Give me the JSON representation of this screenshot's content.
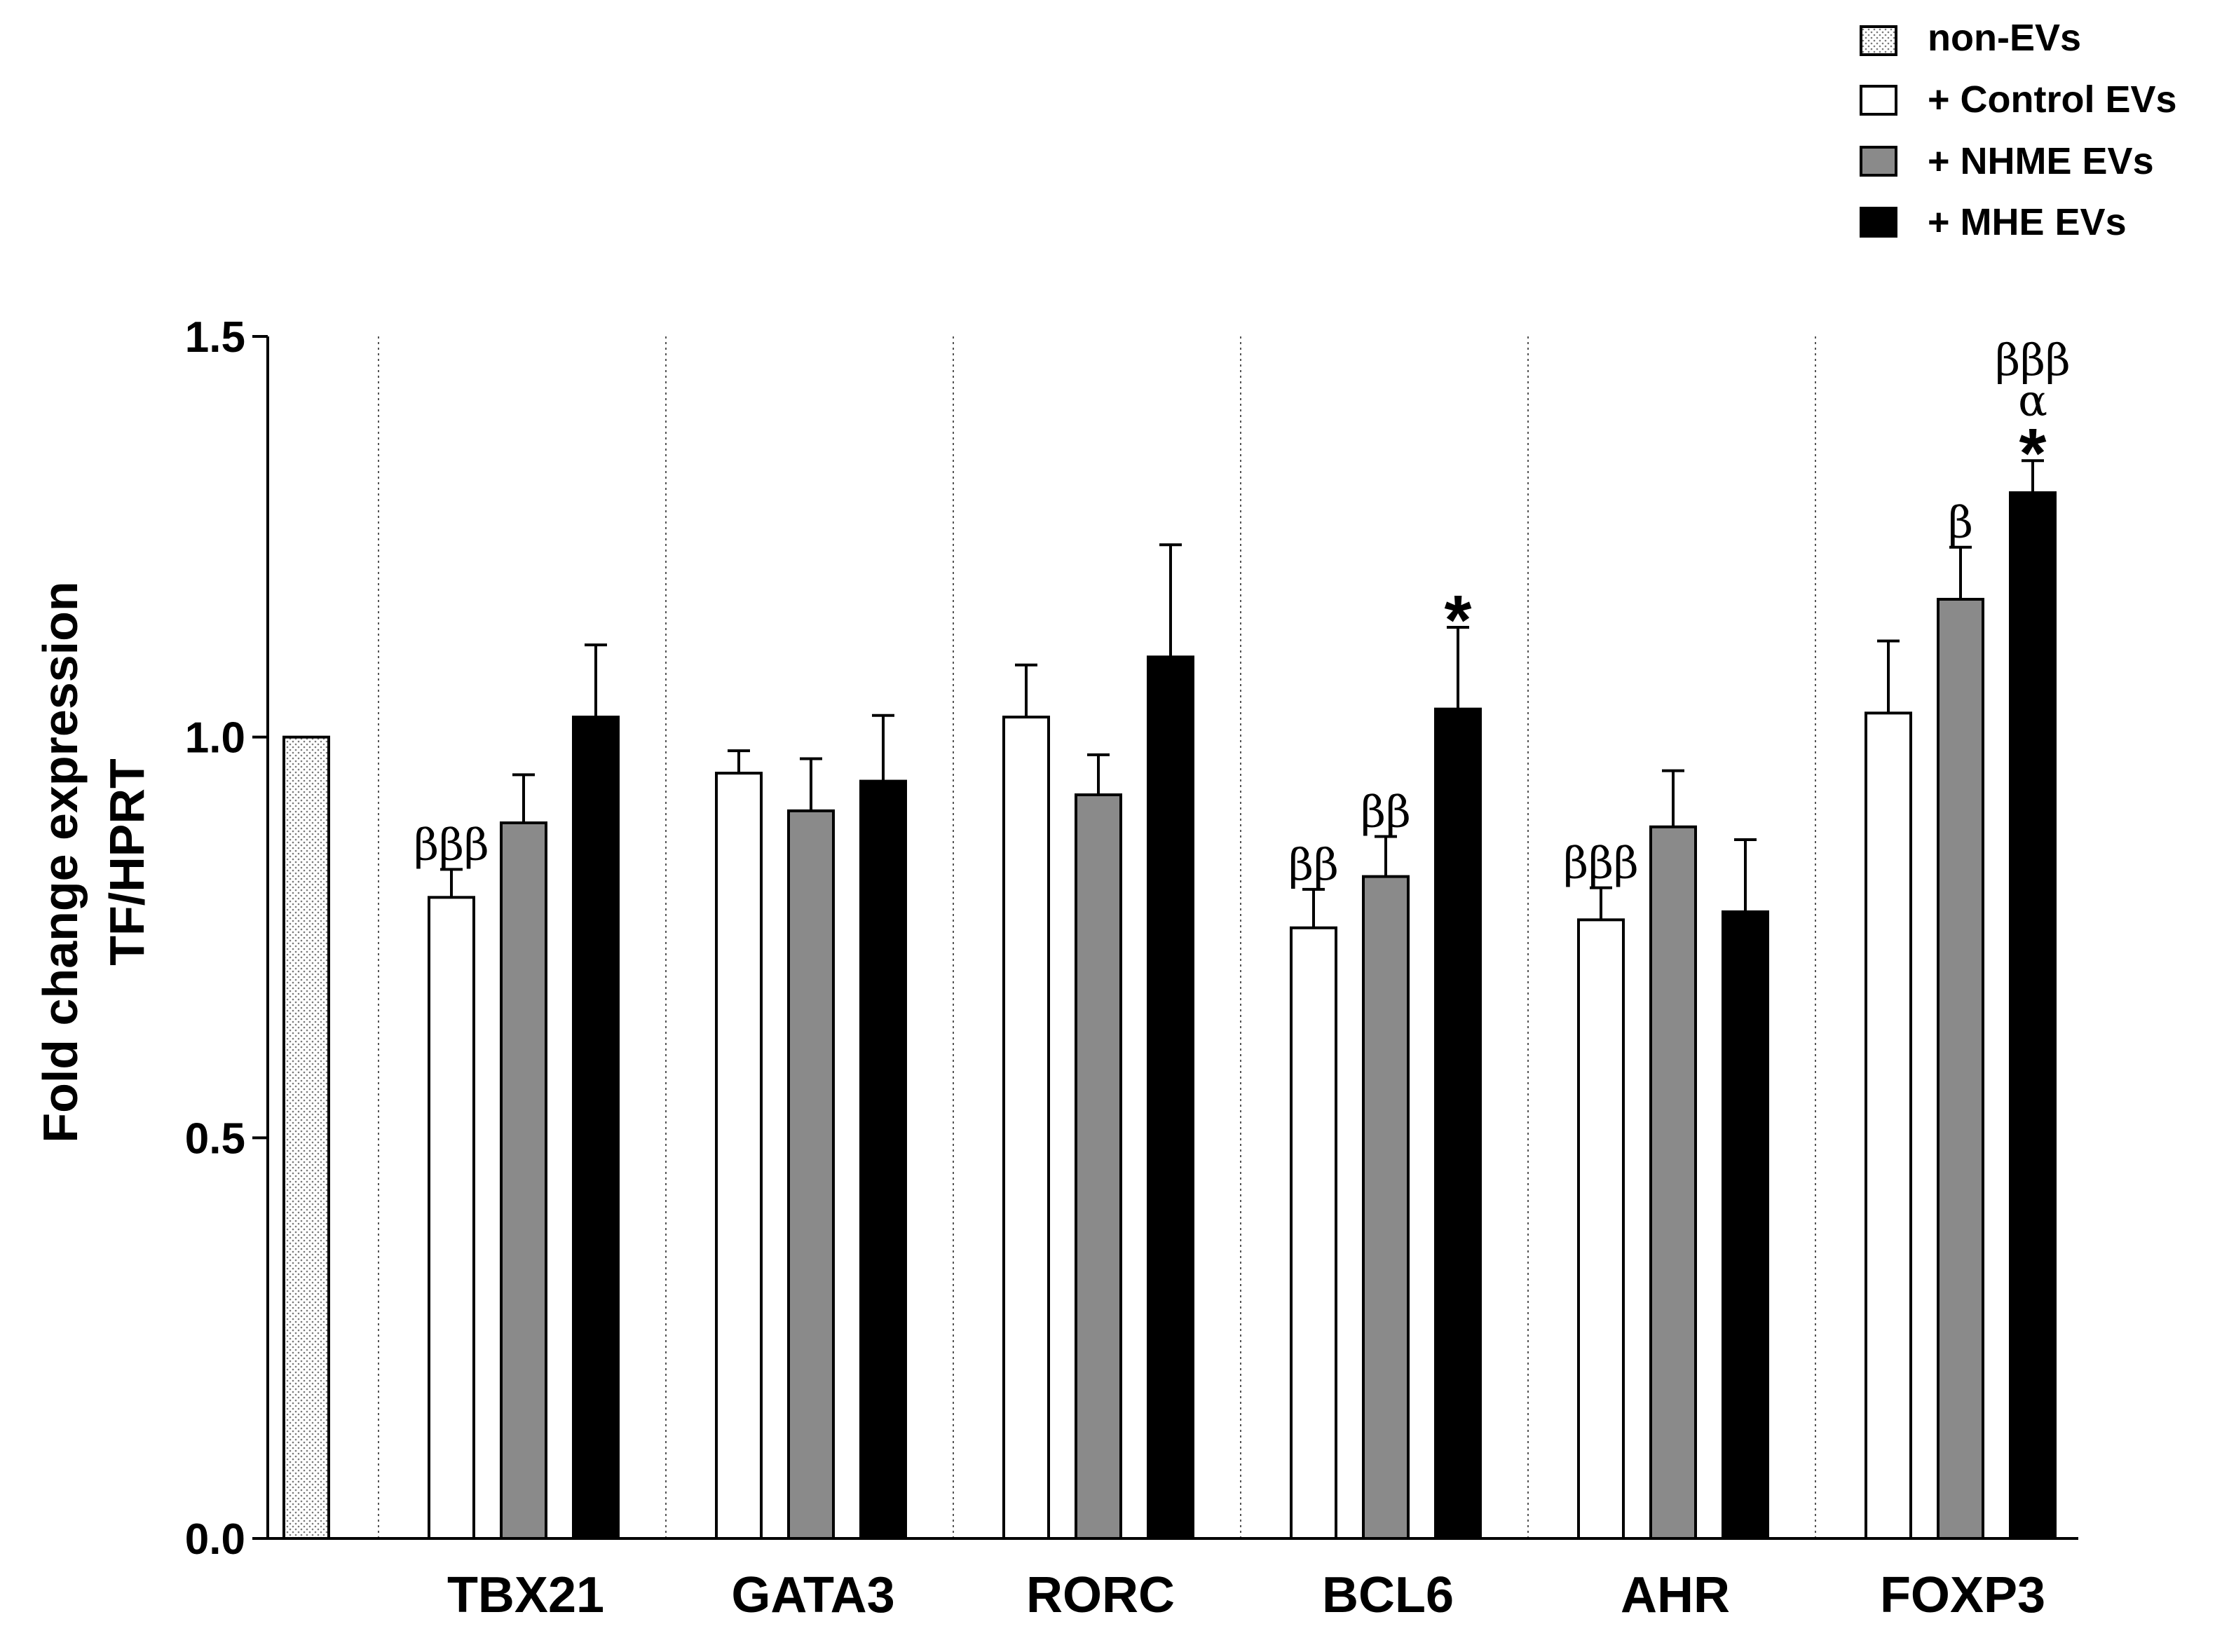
{
  "chart_data": {
    "type": "bar",
    "title": "",
    "xlabel": "",
    "ylabel_lines": [
      "Fold change expression",
      "TF/HPRT"
    ],
    "ylim": [
      0,
      1.5
    ],
    "yticks": [
      "0.0",
      "0.5",
      "1.0",
      "1.5"
    ],
    "ytick_values": [
      0,
      0.5,
      1.0,
      1.5
    ],
    "baseline": {
      "name": "non-EVs",
      "value": 1.0,
      "error": 0.0
    },
    "categories": [
      "TBX21",
      "GATA3",
      "RORC",
      "BCL6",
      "AHR",
      "FOXP3"
    ],
    "series": [
      {
        "name": "+ Control EVs",
        "color": "#ffffff",
        "values": [
          0.8,
          0.955,
          1.025,
          0.762,
          0.772,
          1.03
        ],
        "errors": [
          0.035,
          0.028,
          0.065,
          0.048,
          0.04,
          0.09
        ]
      },
      {
        "name": "+ NHME EVs",
        "color": "#8a8a8a",
        "values": [
          0.893,
          0.908,
          0.928,
          0.826,
          0.888,
          1.172
        ],
        "errors": [
          0.06,
          0.065,
          0.05,
          0.05,
          0.07,
          0.065
        ]
      },
      {
        "name": "+ MHE EVs",
        "color": "#000000",
        "values": [
          1.025,
          0.945,
          1.1,
          1.035,
          0.782,
          1.305
        ],
        "errors": [
          0.09,
          0.082,
          0.14,
          0.102,
          0.09,
          0.04
        ]
      }
    ],
    "annotations": [
      {
        "category": "TBX21",
        "series": 0,
        "lines": [
          "βββ"
        ]
      },
      {
        "category": "BCL6",
        "series": 0,
        "lines": [
          "ββ"
        ]
      },
      {
        "category": "BCL6",
        "series": 1,
        "lines": [
          "ββ"
        ]
      },
      {
        "category": "BCL6",
        "series": 2,
        "lines": [
          "*"
        ]
      },
      {
        "category": "AHR",
        "series": 0,
        "lines": [
          "βββ"
        ]
      },
      {
        "category": "FOXP3",
        "series": 1,
        "lines": [
          "β"
        ]
      },
      {
        "category": "FOXP3",
        "series": 2,
        "lines": [
          "βββ",
          "α",
          "*"
        ]
      }
    ],
    "legend": {
      "position": "top-right",
      "entries": [
        {
          "label": "non-EVs",
          "style": "dotted"
        },
        {
          "label": "+ Control EVs",
          "style": "white"
        },
        {
          "label": "+ NHME EVs",
          "style": "gray"
        },
        {
          "label": "+ MHE EVs",
          "style": "black"
        }
      ]
    }
  }
}
